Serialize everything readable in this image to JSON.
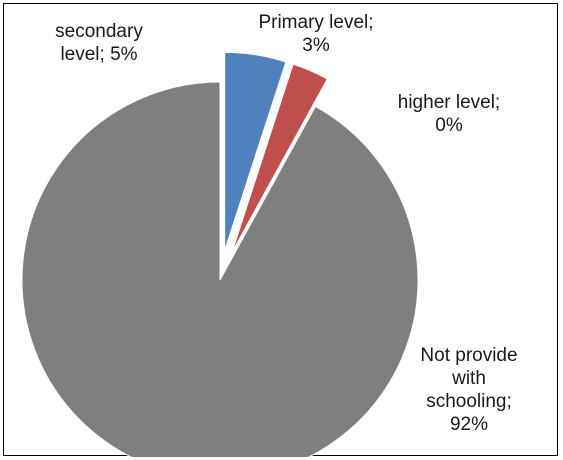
{
  "chart_data": {
    "type": "pie",
    "title": "",
    "slices": [
      {
        "label_lines": [
          "Primary level;",
          "3%"
        ],
        "value": 3,
        "color": "#C0504D",
        "exploded": true
      },
      {
        "label_lines": [
          "higher level;",
          "0%"
        ],
        "value": 0,
        "color": "#9BBB59",
        "exploded": true
      },
      {
        "label_lines": [
          "Not provide",
          "with",
          "schooling;",
          "92%"
        ],
        "value": 92,
        "color": "#7F7F7F",
        "exploded": false
      },
      {
        "label_lines": [
          "secondary",
          "level; 5%"
        ],
        "value": 5,
        "color": "#4F81BD",
        "exploded": true
      }
    ],
    "start_slice": 3,
    "legend": "none",
    "data_labels": "outside"
  }
}
